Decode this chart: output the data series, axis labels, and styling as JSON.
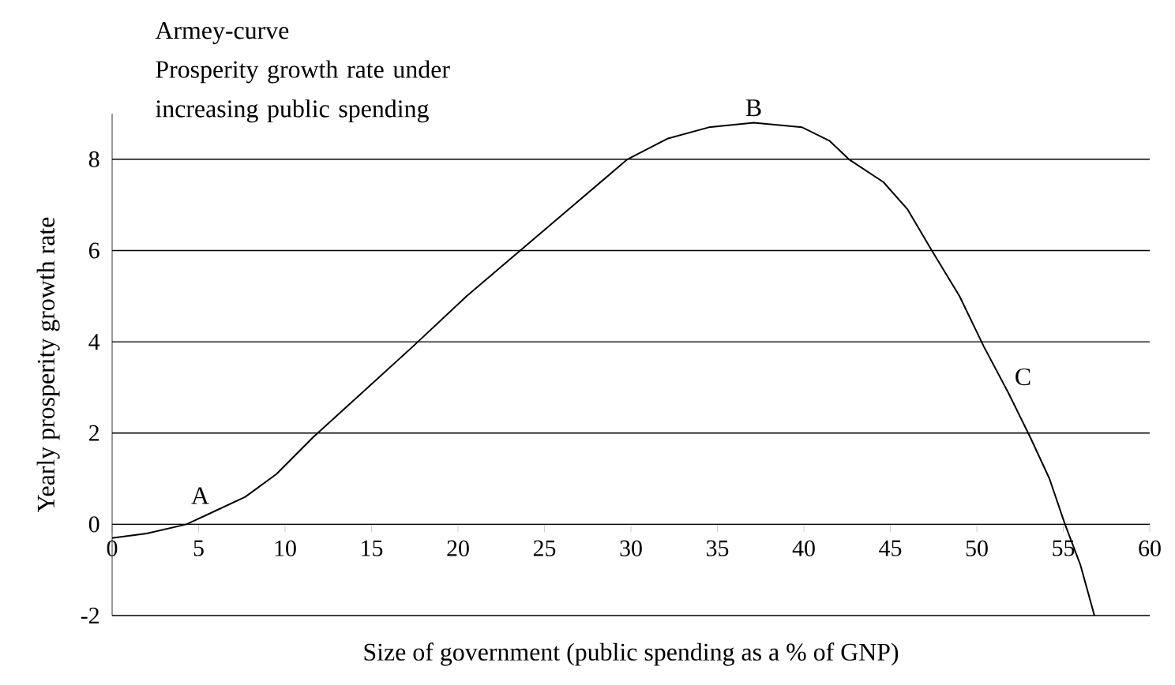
{
  "chart_data": {
    "type": "line",
    "title": "Armey-curve",
    "subtitle": "Prosperity growth rate under increasing public spending",
    "xlabel": "Size of government (public spending as a % of GNP)",
    "ylabel": "Yearly prosperity growth rate",
    "series": [
      {
        "color": "#000000",
        "x": [
          0,
          2,
          4.3,
          6,
          7.7,
          9.5,
          11.6,
          14.5,
          17.4,
          20.5,
          23.6,
          26.7,
          29.8,
          32.1,
          34.5,
          37.1,
          39.9,
          41.5,
          42.6,
          44.6,
          46,
          47.4,
          49,
          50.4,
          51.8,
          53.1,
          54.2,
          55.1,
          56,
          56.8
        ],
        "values": [
          -0.3,
          -0.2,
          0,
          0.3,
          0.6,
          1.1,
          1.9,
          2.9,
          3.9,
          5,
          6,
          7,
          8,
          8.45,
          8.7,
          8.8,
          8.7,
          8.4,
          8,
          7.5,
          6.9,
          6,
          5,
          3.9,
          2.9,
          1.9,
          1,
          0,
          -0.9,
          -2
        ]
      }
    ],
    "xlim": [
      0,
      60
    ],
    "ylim": [
      -2,
      9
    ],
    "xticks": [
      0,
      5,
      10,
      15,
      20,
      25,
      30,
      35,
      40,
      45,
      50,
      55,
      60
    ],
    "yticks": [
      -2,
      0,
      2,
      4,
      6,
      8
    ],
    "grid": "y",
    "annotations": [
      {
        "text": "A",
        "x": 6,
        "y": 0.3
      },
      {
        "text": "B",
        "x": 37.1,
        "y": 8.8
      },
      {
        "text": "C",
        "x": 51.8,
        "y": 2.9
      }
    ]
  }
}
